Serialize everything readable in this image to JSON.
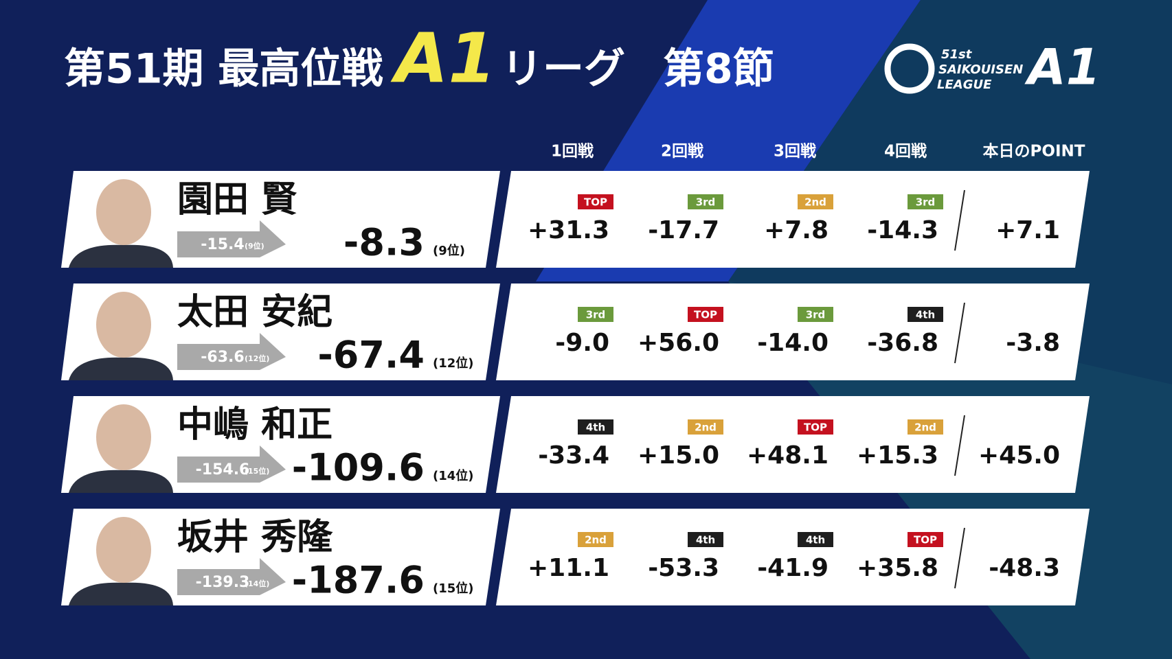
{
  "header": {
    "title_main": "第51期 最高位戦",
    "title_a1": "A1",
    "title_league": "リーグ",
    "title_round": "第8節"
  },
  "logo": {
    "number": "51st",
    "line1": "SAIKOUISEN",
    "line2": "LEAGUE",
    "mark": "A1"
  },
  "columns": [
    "1回戦",
    "2回戦",
    "3回戦",
    "4回戦",
    "本日のPOINT"
  ],
  "badge_colors": {
    "TOP": "#c4111f",
    "2nd": "#d9a13a",
    "3rd": "#6b9a3c",
    "4th": "#1e1e1e"
  },
  "rows": [
    {
      "name": "園田 賢",
      "prev": "-15.4",
      "prev_rank": "(9位)",
      "total": "-8.3",
      "rank": "(9位)",
      "games": [
        {
          "place": "TOP",
          "score": "+31.3"
        },
        {
          "place": "3rd",
          "score": "-17.7"
        },
        {
          "place": "2nd",
          "score": "+7.8"
        },
        {
          "place": "3rd",
          "score": "-14.3"
        }
      ],
      "today": "+7.1"
    },
    {
      "name": "太田 安紀",
      "prev": "-63.6",
      "prev_rank": "(12位)",
      "total": "-67.4",
      "rank": "(12位)",
      "games": [
        {
          "place": "3rd",
          "score": "-9.0"
        },
        {
          "place": "TOP",
          "score": "+56.0"
        },
        {
          "place": "3rd",
          "score": "-14.0"
        },
        {
          "place": "4th",
          "score": "-36.8"
        }
      ],
      "today": "-3.8"
    },
    {
      "name": "中嶋 和正",
      "prev": "-154.6",
      "prev_rank": "(15位)",
      "total": "-109.6",
      "rank": "(14位)",
      "games": [
        {
          "place": "4th",
          "score": "-33.4"
        },
        {
          "place": "2nd",
          "score": "+15.0"
        },
        {
          "place": "TOP",
          "score": "+48.1"
        },
        {
          "place": "2nd",
          "score": "+15.3"
        }
      ],
      "today": "+45.0"
    },
    {
      "name": "坂井 秀隆",
      "prev": "-139.3",
      "prev_rank": "(14位)",
      "total": "-187.6",
      "rank": "(15位)",
      "games": [
        {
          "place": "2nd",
          "score": "+11.1"
        },
        {
          "place": "4th",
          "score": "-53.3"
        },
        {
          "place": "4th",
          "score": "-41.9"
        },
        {
          "place": "TOP",
          "score": "+35.8"
        }
      ],
      "today": "-48.3"
    }
  ]
}
